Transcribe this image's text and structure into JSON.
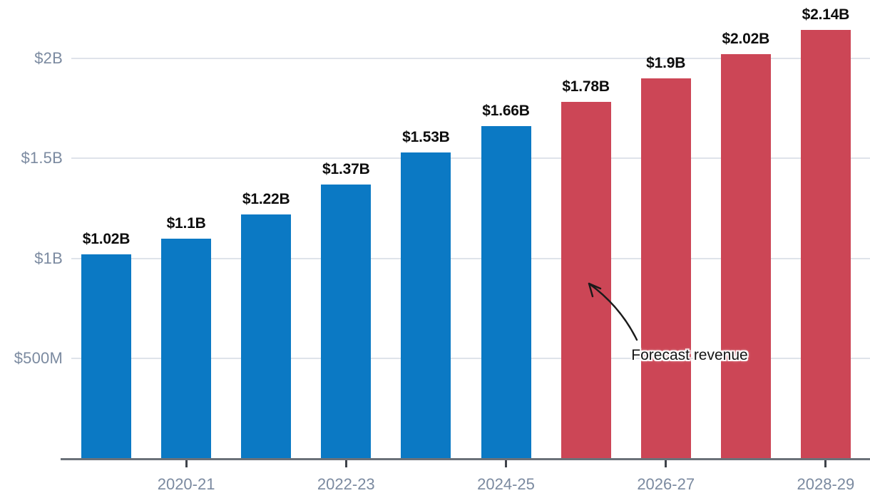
{
  "chart_data": {
    "type": "bar",
    "title": "",
    "unit": "USD billions",
    "grid": "horizontal",
    "legend_position": "none",
    "ylim": [
      0,
      2.25
    ],
    "bars": [
      {
        "label": "$1.02B",
        "value": 1.02,
        "series": "actual"
      },
      {
        "label": "$1.1B",
        "value": 1.1,
        "series": "actual"
      },
      {
        "label": "$1.22B",
        "value": 1.22,
        "series": "actual"
      },
      {
        "label": "$1.37B",
        "value": 1.37,
        "series": "actual"
      },
      {
        "label": "$1.53B",
        "value": 1.53,
        "series": "actual"
      },
      {
        "label": "$1.66B",
        "value": 1.66,
        "series": "actual"
      },
      {
        "label": "$1.78B",
        "value": 1.78,
        "series": "forecast"
      },
      {
        "label": "$1.9B",
        "value": 1.9,
        "series": "forecast"
      },
      {
        "label": "$2.02B",
        "value": 2.02,
        "series": "forecast"
      },
      {
        "label": "$2.14B",
        "value": 2.14,
        "series": "forecast"
      }
    ],
    "x_axis": {
      "ticks": [
        {
          "bar_index": 1,
          "label": "2020-21"
        },
        {
          "bar_index": 3,
          "label": "2022-23"
        },
        {
          "bar_index": 5,
          "label": "2024-25"
        },
        {
          "bar_index": 7,
          "label": "2026-27"
        },
        {
          "bar_index": 9,
          "label": "2028-29"
        }
      ]
    },
    "y_axis": {
      "ticks": [
        {
          "value": 0.5,
          "label": "$500M"
        },
        {
          "value": 1.0,
          "label": "$1B"
        },
        {
          "value": 1.5,
          "label": "$1.5B"
        },
        {
          "value": 2.0,
          "label": "$2B"
        }
      ]
    },
    "annotation": {
      "text": "Forecast revenue",
      "target": "first forecast bar ($1.78B)"
    },
    "colors": {
      "actual_bar": "#0b79c4",
      "forecast_bar": "#cc4656",
      "grid_line": "#dfe3ea",
      "axis_line": "#6b7179",
      "tick_mark": "#3f434a",
      "axis_label": "#7b8aa0",
      "value_label": "#0d0d0d",
      "annotation_text": "#141414",
      "annotation_arrow": "#1a1a1a"
    }
  }
}
